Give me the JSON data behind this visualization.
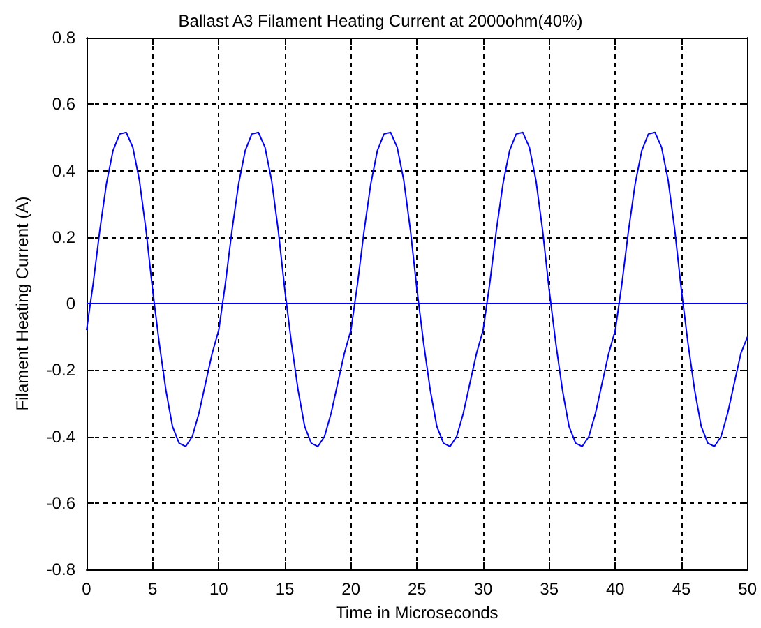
{
  "chart_data": {
    "type": "line",
    "title": "Ballast A3 Filament Heating Current at 2000ohm(40%)",
    "xlabel": "Time in Microseconds",
    "ylabel": "Filament Heating Current (A)",
    "xlim": [
      0,
      50
    ],
    "xticks": [
      0,
      5,
      10,
      15,
      20,
      25,
      30,
      35,
      40,
      45,
      50
    ],
    "ylim": [
      -0.8,
      0.8
    ],
    "yticks": [
      -0.8,
      -0.6,
      -0.4,
      -0.2,
      0,
      0.2,
      0.4,
      0.6,
      0.8
    ],
    "grid": true,
    "marker": "none",
    "line_style": "solid",
    "series": [
      {
        "color": "#0000ff",
        "x": [
          0,
          0.5,
          1,
          1.5,
          2,
          2.5,
          3,
          3.5,
          4,
          4.5,
          5,
          5.5,
          6,
          6.5,
          7,
          7.5,
          8,
          8.5,
          9,
          9.5,
          10,
          10.5,
          11,
          11.5,
          12,
          12.5,
          13,
          13.5,
          14,
          14.5,
          15,
          15.5,
          16,
          16.5,
          17,
          17.5,
          18,
          18.5,
          19,
          19.5,
          20,
          20.5,
          21,
          21.5,
          22,
          22.5,
          23,
          23.5,
          24,
          24.5,
          25,
          25.5,
          26,
          26.5,
          27,
          27.5,
          28,
          28.5,
          29,
          29.5,
          30,
          30.5,
          31,
          31.5,
          32,
          32.5,
          33,
          33.5,
          34,
          34.5,
          35,
          35.5,
          36,
          36.5,
          37,
          37.5,
          38,
          38.5,
          39,
          39.5,
          40,
          40.5,
          41,
          41.5,
          42,
          42.5,
          43,
          43.5,
          44,
          44.5,
          45,
          45.5,
          46,
          46.5,
          47,
          47.5,
          48,
          48.5,
          49,
          49.5,
          50
        ],
        "values": [
          -0.08,
          0.06,
          0.22,
          0.36,
          0.46,
          0.51,
          0.515,
          0.47,
          0.37,
          0.22,
          0.04,
          -0.12,
          -0.26,
          -0.37,
          -0.42,
          -0.43,
          -0.4,
          -0.33,
          -0.24,
          -0.15,
          -0.08,
          0.06,
          0.22,
          0.36,
          0.46,
          0.51,
          0.515,
          0.47,
          0.37,
          0.22,
          0.04,
          -0.12,
          -0.26,
          -0.37,
          -0.42,
          -0.43,
          -0.4,
          -0.33,
          -0.24,
          -0.15,
          -0.08,
          0.06,
          0.22,
          0.36,
          0.46,
          0.51,
          0.515,
          0.47,
          0.37,
          0.22,
          0.04,
          -0.12,
          -0.26,
          -0.37,
          -0.42,
          -0.43,
          -0.4,
          -0.33,
          -0.24,
          -0.15,
          -0.08,
          0.06,
          0.22,
          0.36,
          0.46,
          0.51,
          0.515,
          0.47,
          0.37,
          0.22,
          0.04,
          -0.12,
          -0.26,
          -0.37,
          -0.42,
          -0.43,
          -0.4,
          -0.33,
          -0.24,
          -0.15,
          -0.08,
          0.06,
          0.22,
          0.36,
          0.46,
          0.51,
          0.515,
          0.47,
          0.37,
          0.22,
          0.04,
          -0.12,
          -0.26,
          -0.37,
          -0.42,
          -0.43,
          -0.4,
          -0.33,
          -0.24,
          -0.15,
          -0.1
        ]
      },
      {
        "color": "#0000ff",
        "x": [
          0,
          50
        ],
        "values": [
          0,
          0
        ]
      }
    ]
  }
}
